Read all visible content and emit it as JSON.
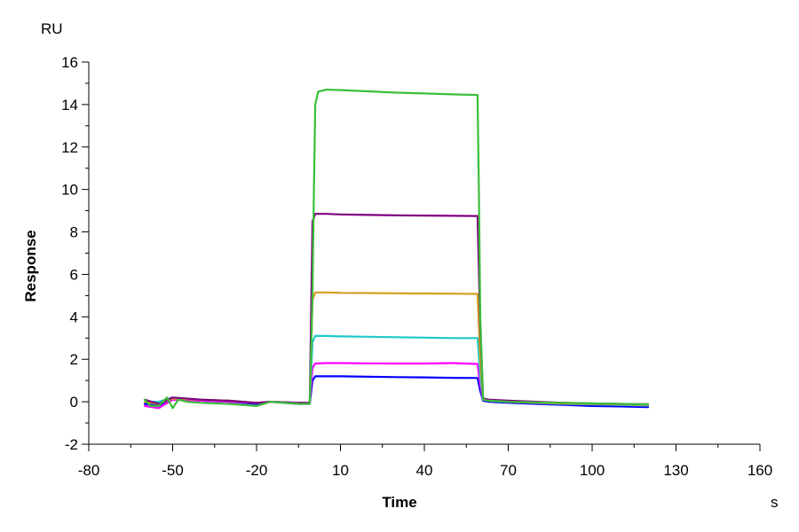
{
  "chart_data": {
    "type": "line",
    "title": "",
    "xlabel": "Time",
    "ylabel": "Response",
    "x_unit": "s",
    "y_unit": "RU",
    "xlim": [
      -80,
      160
    ],
    "ylim": [
      -2,
      16
    ],
    "x_ticks": [
      "-80",
      "-50",
      "-20",
      "10",
      "40",
      "70",
      "100",
      "130",
      "160"
    ],
    "y_ticks": [
      "16",
      "14",
      "12",
      "10",
      "8",
      "6",
      "4",
      "2",
      "0",
      "-2"
    ],
    "grid": false,
    "legend": "none",
    "series": [
      {
        "color": "#0000ff",
        "x": [
          -60,
          -55,
          -50,
          -40,
          -30,
          -20,
          -15,
          -5,
          -1,
          0,
          1,
          5,
          10,
          20,
          30,
          40,
          50,
          59,
          60,
          61,
          63,
          70,
          80,
          90,
          100,
          110,
          120
        ],
        "y": [
          -0.1,
          -0.2,
          0.1,
          0.05,
          0.0,
          -0.1,
          0.0,
          -0.1,
          -0.1,
          1.0,
          1.2,
          1.2,
          1.2,
          1.18,
          1.16,
          1.15,
          1.13,
          1.12,
          0.5,
          0.05,
          0.0,
          -0.05,
          -0.1,
          -0.15,
          -0.2,
          -0.22,
          -0.25
        ]
      },
      {
        "color": "#ff00ff",
        "x": [
          -60,
          -55,
          -50,
          -40,
          -30,
          -20,
          -15,
          -5,
          -1,
          0,
          1,
          5,
          10,
          20,
          30,
          40,
          50,
          59,
          60,
          61,
          63,
          70,
          80,
          90,
          100,
          110,
          120
        ],
        "y": [
          -0.2,
          -0.3,
          0.1,
          0.05,
          0.0,
          -0.05,
          0.0,
          -0.05,
          -0.05,
          1.6,
          1.8,
          1.82,
          1.82,
          1.81,
          1.8,
          1.8,
          1.82,
          1.78,
          0.8,
          0.1,
          0.05,
          0.0,
          -0.05,
          -0.1,
          -0.12,
          -0.15,
          -0.18
        ]
      },
      {
        "color": "#20c8c8",
        "x": [
          -60,
          -55,
          -50,
          -40,
          -30,
          -20,
          -15,
          -5,
          -1,
          0,
          1,
          5,
          10,
          20,
          30,
          40,
          50,
          59,
          60,
          61,
          63,
          70,
          80,
          90,
          100,
          110,
          120
        ],
        "y": [
          0.0,
          0.0,
          0.2,
          0.1,
          0.05,
          -0.05,
          0.0,
          -0.05,
          -0.05,
          2.8,
          3.1,
          3.1,
          3.08,
          3.06,
          3.04,
          3.02,
          3.0,
          3.0,
          1.2,
          0.1,
          0.05,
          0.0,
          -0.05,
          -0.1,
          -0.12,
          -0.15,
          -0.18
        ]
      },
      {
        "color": "#d4a020",
        "x": [
          -60,
          -55,
          -50,
          -40,
          -30,
          -20,
          -15,
          -5,
          -1,
          0,
          1,
          5,
          10,
          20,
          30,
          40,
          50,
          59,
          60,
          61,
          63,
          70,
          80,
          90,
          100,
          110,
          120
        ],
        "y": [
          0.0,
          -0.1,
          0.15,
          0.1,
          0.05,
          -0.05,
          0.0,
          -0.05,
          -0.05,
          4.8,
          5.15,
          5.15,
          5.13,
          5.12,
          5.11,
          5.1,
          5.09,
          5.08,
          2.0,
          0.1,
          0.05,
          0.0,
          -0.05,
          -0.08,
          -0.1,
          -0.12,
          -0.15
        ]
      },
      {
        "color": "#800080",
        "x": [
          -60,
          -55,
          -50,
          -40,
          -30,
          -20,
          -15,
          -5,
          -1,
          0,
          1,
          5,
          10,
          20,
          30,
          40,
          50,
          59,
          60,
          61,
          63,
          70,
          80,
          90,
          100,
          110,
          120
        ],
        "y": [
          0.1,
          -0.1,
          0.2,
          0.1,
          0.05,
          -0.05,
          0.0,
          -0.05,
          -0.05,
          8.5,
          8.85,
          8.85,
          8.82,
          8.8,
          8.78,
          8.77,
          8.76,
          8.75,
          3.5,
          0.15,
          0.1,
          0.05,
          0.0,
          -0.05,
          -0.08,
          -0.1,
          -0.12
        ]
      },
      {
        "color": "#3cbe3c",
        "x": [
          -60,
          -58,
          -55,
          -52,
          -50,
          -48,
          -45,
          -40,
          -30,
          -20,
          -15,
          -5,
          -1,
          0,
          0.5,
          1,
          2,
          5,
          10,
          20,
          30,
          40,
          50,
          59,
          59.5,
          60,
          61,
          63,
          70,
          80,
          90,
          100,
          110,
          120
        ],
        "y": [
          0.1,
          -0.2,
          -0.2,
          0.2,
          -0.3,
          0.1,
          0.0,
          -0.05,
          -0.1,
          -0.2,
          0.0,
          -0.1,
          -0.1,
          5.0,
          10.0,
          14.0,
          14.6,
          14.7,
          14.68,
          14.62,
          14.56,
          14.52,
          14.48,
          14.45,
          10.0,
          4.0,
          0.1,
          0.05,
          0.0,
          -0.03,
          -0.05,
          -0.08,
          -0.1,
          -0.12
        ]
      }
    ]
  }
}
